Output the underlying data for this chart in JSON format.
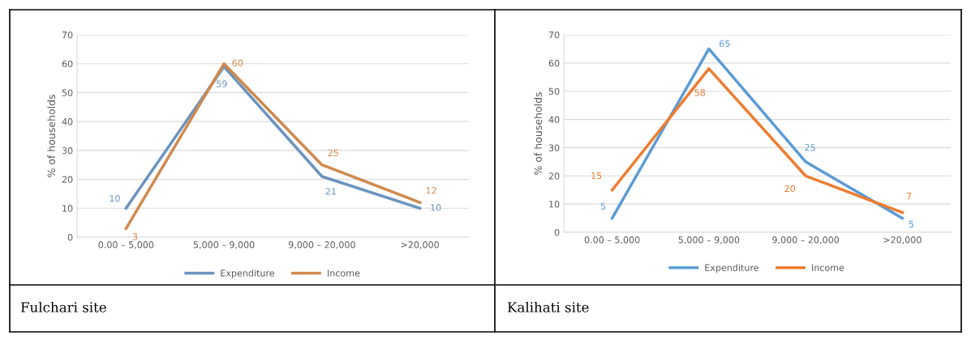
{
  "chart_data": [
    {
      "type": "line",
      "ylabel": "% of households",
      "categories": [
        "0.00 – 5,000",
        "5,000 – 9,000",
        "9,000 – 20,000",
        ">20,000"
      ],
      "series": [
        {
          "name": "Expenditure",
          "color": "#6b93bf",
          "values": [
            10,
            59,
            21,
            10
          ]
        },
        {
          "name": "Income",
          "color": "#cf8a4f",
          "values": [
            3,
            60,
            25,
            12
          ]
        }
      ],
      "ylim": [
        0,
        70
      ],
      "yticks": [
        0,
        10,
        20,
        30,
        40,
        50,
        60,
        70
      ],
      "grid": "y",
      "legend": "bottom",
      "data_labels": true,
      "marker": "none",
      "line_style": "solid",
      "annotations": [
        "Fulchari site"
      ]
    },
    {
      "type": "line",
      "ylabel": "% of households",
      "categories": [
        "0.00 – 5,000",
        "5,000 – 9,000",
        "9,000 – 20,000",
        ">20,000"
      ],
      "series": [
        {
          "name": "Expenditure",
          "color": "#5b9bd5",
          "values": [
            5,
            65,
            25,
            5
          ]
        },
        {
          "name": "Income",
          "color": "#ed7d31",
          "values": [
            15,
            58,
            20,
            7
          ]
        }
      ],
      "ylim": [
        0,
        70
      ],
      "yticks": [
        0,
        10,
        20,
        30,
        40,
        50,
        60,
        70
      ],
      "grid": "y",
      "legend": "bottom",
      "data_labels": true,
      "marker": "none",
      "line_style": "solid",
      "annotations": [
        "Kalihati site"
      ]
    }
  ]
}
